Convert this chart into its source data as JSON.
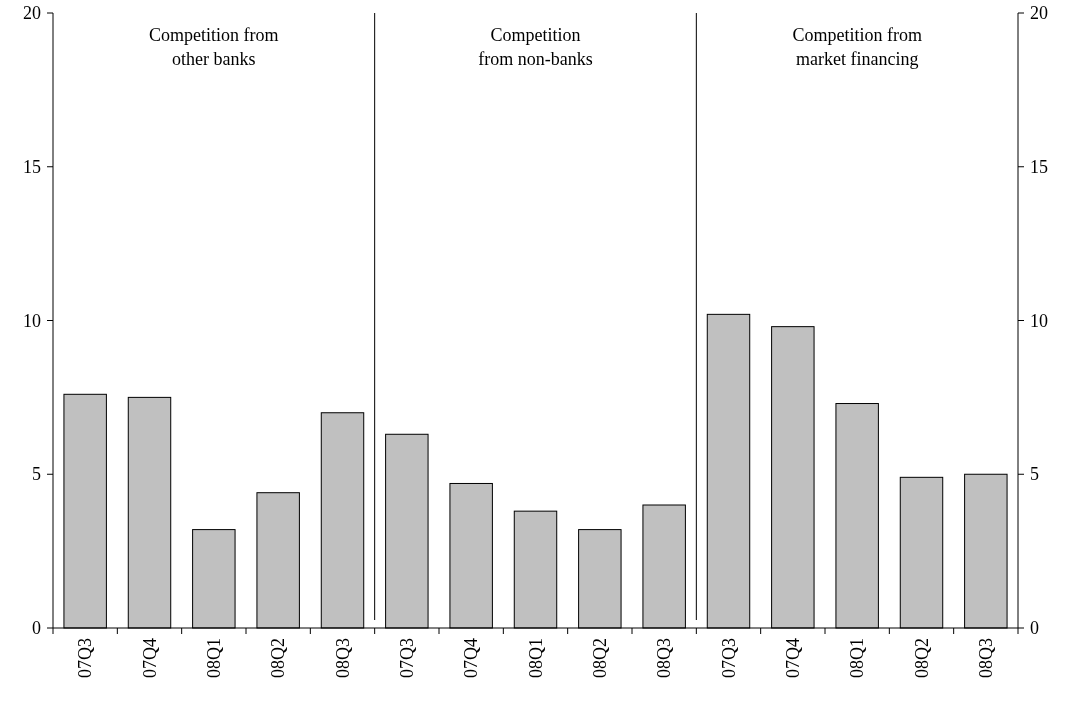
{
  "chart_data": {
    "type": "bar",
    "categories": [
      "07Q3",
      "07Q4",
      "08Q1",
      "08Q2",
      "08Q3",
      "07Q3",
      "07Q4",
      "08Q1",
      "08Q2",
      "08Q3",
      "07Q3",
      "07Q4",
      "08Q1",
      "08Q2",
      "08Q3"
    ],
    "values": [
      7.6,
      7.5,
      3.2,
      4.4,
      7.0,
      6.3,
      4.7,
      3.8,
      3.2,
      4.0,
      10.2,
      9.8,
      7.3,
      4.9,
      5.0
    ],
    "color": "#c0c0c0",
    "ylim": [
      0,
      20
    ],
    "yticks": [
      0,
      5,
      10,
      15,
      20
    ],
    "y2lim": [
      0,
      20
    ],
    "y2ticks": [
      0,
      5,
      10,
      15,
      20
    ],
    "grid": false,
    "annotations": [
      "Competition from\nother banks",
      "Competition\nfrom non-banks",
      "Competition from\nmarket financing"
    ]
  }
}
